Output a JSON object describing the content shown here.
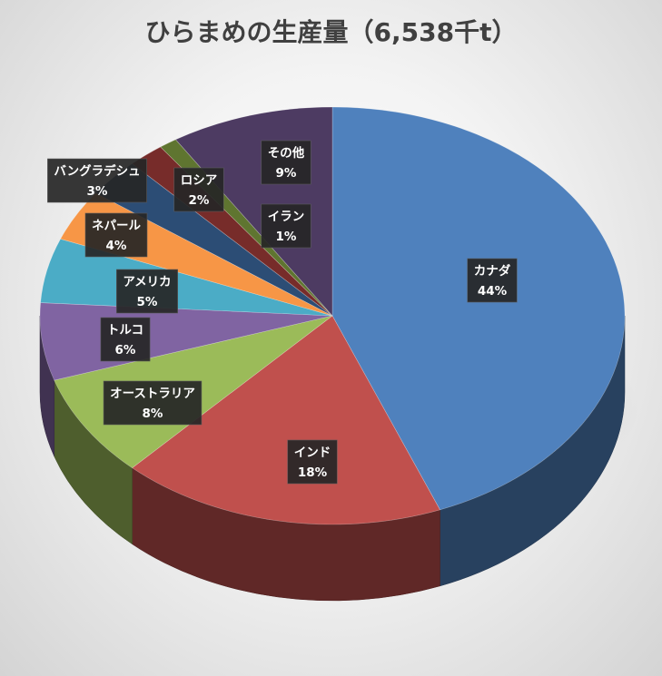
{
  "chart_data": {
    "type": "pie",
    "title": "ひらまめの生産量（6,538千t）",
    "categories": [
      "カナダ",
      "インド",
      "オーストラリア",
      "トルコ",
      "アメリカ",
      "ネパール",
      "バングラデシュ",
      "ロシア",
      "イラン",
      "その他"
    ],
    "values": [
      44,
      18,
      8,
      6,
      5,
      4,
      3,
      2,
      1,
      9
    ],
    "value_labels": [
      "44%",
      "18%",
      "8%",
      "6%",
      "5%",
      "4%",
      "3%",
      "2%",
      "1%",
      "9%"
    ],
    "unit": "%",
    "style": "3d",
    "start_angle": "12 o'clock, clockwise",
    "legend": "none (data labels on slices)",
    "colors": [
      "#4F81BD",
      "#C0504D",
      "#9BBB59",
      "#8064A2",
      "#4BACC6",
      "#F79646",
      "#2C4D75",
      "#772C2A",
      "#5F7530",
      "#4D3B62"
    ]
  }
}
